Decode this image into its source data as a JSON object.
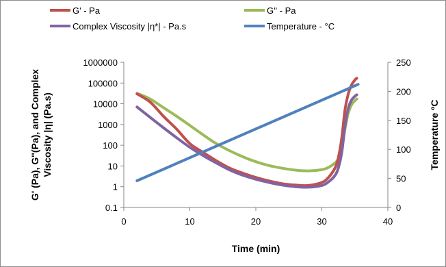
{
  "chart_data": {
    "type": "line",
    "xlabel": "Time (min)",
    "ylabel_left_line1": "G' (Pa), G''(Pa), and Complex",
    "ylabel_left_line2": "Viscosity |η| (Pa.s)",
    "ylabel_right": "Temperature ºC",
    "xlim": [
      0,
      40
    ],
    "ylim_left": [
      0.1,
      1000000
    ],
    "ylim_right": [
      0,
      250
    ],
    "yscale_left": "log",
    "grid": false,
    "legend_position": "top",
    "x_ticks": [
      "0",
      "10",
      "20",
      "30",
      "40"
    ],
    "y_left_ticks": [
      "0.1",
      "1",
      "10",
      "100",
      "1000",
      "10000",
      "100000",
      "1000000"
    ],
    "y_right_ticks": [
      "0",
      "50",
      "100",
      "150",
      "200",
      "250"
    ],
    "series": [
      {
        "name": "G' - Pa",
        "color": "#c0504d",
        "axis": "left",
        "x": [
          2,
          4,
          6,
          8,
          10,
          12,
          14,
          16,
          18,
          20,
          22,
          24,
          26,
          28,
          30,
          31,
          32,
          32.5,
          33,
          33.5,
          34,
          34.5,
          35,
          35.3
        ],
        "y": [
          30000,
          12000,
          2500,
          600,
          120,
          45,
          18,
          8,
          4.5,
          2.8,
          1.9,
          1.4,
          1.2,
          1.15,
          1.6,
          2.8,
          8,
          25,
          200,
          5000,
          30000,
          80000,
          140000,
          170000
        ]
      },
      {
        "name": "G'' - Pa",
        "color": "#9bbb59",
        "axis": "left",
        "x": [
          2,
          4,
          6,
          8,
          10,
          12,
          14,
          16,
          18,
          20,
          22,
          24,
          26,
          28,
          30,
          31,
          32,
          32.5,
          33,
          33.5,
          34,
          34.5,
          35,
          35.3
        ],
        "y": [
          32000,
          17000,
          6500,
          2500,
          900,
          320,
          120,
          55,
          28,
          16,
          10.5,
          7.8,
          6.3,
          5.8,
          6.6,
          8.5,
          14,
          22,
          70,
          600,
          3500,
          9000,
          14000,
          17000
        ]
      },
      {
        "name": "Complex Viscosity |η*| - Pa.s",
        "color": "#8064a2",
        "axis": "left",
        "x": [
          2,
          4,
          6,
          8,
          10,
          12,
          14,
          16,
          18,
          20,
          22,
          24,
          26,
          28,
          30,
          31,
          32,
          32.5,
          33,
          33.5,
          34,
          34.5,
          35,
          35.3
        ],
        "y": [
          7000,
          2200,
          700,
          230,
          80,
          32,
          14,
          6.5,
          3.6,
          2.3,
          1.6,
          1.2,
          1.0,
          0.95,
          1.15,
          1.7,
          3.5,
          8,
          40,
          800,
          6000,
          15000,
          23000,
          27000
        ]
      },
      {
        "name": "Temperature - °C",
        "color": "#4f81bd",
        "axis": "right",
        "x": [
          2,
          35.5
        ],
        "y": [
          46,
          212
        ]
      }
    ]
  }
}
